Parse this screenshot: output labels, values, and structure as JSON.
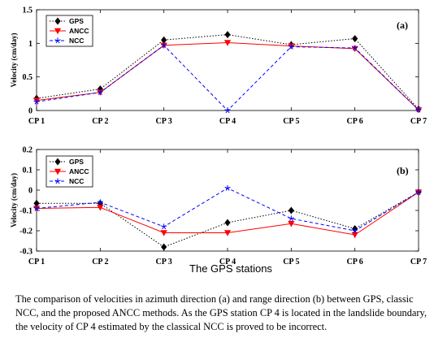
{
  "chart_data": [
    {
      "type": "line",
      "panel_label": "(a)",
      "ylabel": "Velocity (cm/day)",
      "categories": [
        "CP 1",
        "CP 2",
        "CP 3",
        "CP 4",
        "CP 5",
        "CP 6",
        "CP 7"
      ],
      "ylim": [
        0,
        1.5
      ],
      "yticks": [
        0,
        0.5,
        1,
        1.5
      ],
      "ytick_labels": [
        "0",
        "0.5",
        "1",
        "1.5"
      ],
      "grid": false,
      "legend_position": "top-left",
      "series": [
        {
          "name": "GPS",
          "values": [
            0.18,
            0.32,
            1.05,
            1.13,
            0.98,
            1.07,
            0.02
          ],
          "color": "#000000",
          "marker": "diamond",
          "dash": "dotted"
        },
        {
          "name": "ANCC",
          "values": [
            0.15,
            0.27,
            0.97,
            1.01,
            0.96,
            0.92,
            0.01
          ],
          "color": "#ff0000",
          "marker": "triangle-down",
          "dash": "solid"
        },
        {
          "name": "NCC",
          "values": [
            0.13,
            0.27,
            0.97,
            0.0,
            0.95,
            0.93,
            0.01
          ],
          "color": "#0000ff",
          "marker": "star",
          "dash": "dashed"
        }
      ]
    },
    {
      "type": "line",
      "panel_label": "(b)",
      "ylabel": "Velocity (cm/day)",
      "xlabel": "The GPS stations",
      "categories": [
        "CP 1",
        "CP 2",
        "CP 3",
        "CP 4",
        "CP 5",
        "CP 6",
        "CP 7"
      ],
      "ylim": [
        -0.3,
        0.2
      ],
      "yticks": [
        -0.3,
        -0.2,
        -0.1,
        0,
        0.1,
        0.2
      ],
      "ytick_labels": [
        "-0.3",
        "-0.2",
        "-0.1",
        "0",
        "0.1",
        "0.2"
      ],
      "grid": false,
      "legend_position": "top-left",
      "series": [
        {
          "name": "GPS",
          "values": [
            -0.065,
            -0.065,
            -0.28,
            -0.16,
            -0.1,
            -0.19,
            -0.01
          ],
          "color": "#000000",
          "marker": "diamond",
          "dash": "dotted"
        },
        {
          "name": "ANCC",
          "values": [
            -0.09,
            -0.085,
            -0.21,
            -0.21,
            -0.165,
            -0.22,
            -0.01
          ],
          "color": "#ff0000",
          "marker": "triangle-down",
          "dash": "solid"
        },
        {
          "name": "NCC",
          "values": [
            -0.09,
            -0.06,
            -0.18,
            0.01,
            -0.14,
            -0.2,
            -0.01
          ],
          "color": "#0000ff",
          "marker": "star",
          "dash": "dashed"
        }
      ]
    }
  ],
  "caption": "The comparison of velocities in azimuth direction (a) and range direction (b) between GPS, classic NCC, and the proposed ANCC methods. As the GPS station CP 4 is located in the landslide boundary, the velocity of CP 4 estimated by the classical NCC is proved to be incorrect."
}
